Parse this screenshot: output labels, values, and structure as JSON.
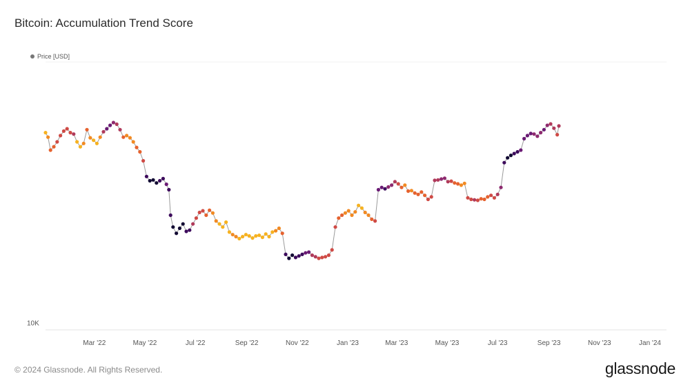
{
  "header": {
    "title": "Bitcoin: Accumulation Trend Score"
  },
  "legend": {
    "label": "Price [USD]"
  },
  "footer": {
    "copyright": "© 2024 Glassnode. All Rights Reserved.",
    "brand": "glassnode"
  },
  "colors": {
    "line": "#9a9a9a",
    "axis": "#e3e3e3",
    "palette": [
      "#120a33",
      "#3d0b5c",
      "#6a1a74",
      "#8e2a6f",
      "#b03a5b",
      "#cf4a45",
      "#e6622e",
      "#f28a22",
      "#f7b21f",
      "#f5d23a"
    ]
  },
  "chart_data": {
    "type": "scatter",
    "title": "Bitcoin: Accumulation Trend Score",
    "series_name": "Price [USD]",
    "y_scale": "log",
    "ylim": [
      9500,
      75000
    ],
    "y_tick_labels": [
      "10K"
    ],
    "x_range": [
      0,
      750
    ],
    "x_tick_labels": [
      "Mar '22",
      "May '22",
      "Jul '22",
      "Sep '22",
      "Nov '22",
      "Jan '23",
      "Mar '23",
      "May '23",
      "Jul '23",
      "Sep '23",
      "Nov '23",
      "Jan '24"
    ],
    "x_tick_days": [
      59,
      120,
      181,
      243,
      304,
      365,
      424,
      485,
      546,
      608,
      669,
      730
    ],
    "points": [
      [
        0,
        43500,
        0.15
      ],
      [
        3,
        42000,
        0.2
      ],
      [
        6,
        38000,
        0.3
      ],
      [
        10,
        39000,
        0.35
      ],
      [
        14,
        40500,
        0.45
      ],
      [
        18,
        42500,
        0.5
      ],
      [
        22,
        44000,
        0.4
      ],
      [
        26,
        44800,
        0.5
      ],
      [
        30,
        43500,
        0.45
      ],
      [
        34,
        43000,
        0.6
      ],
      [
        38,
        40500,
        0.15
      ],
      [
        42,
        39000,
        0.1
      ],
      [
        46,
        40000,
        0.2
      ],
      [
        50,
        44500,
        0.3
      ],
      [
        54,
        41800,
        0.2
      ],
      [
        58,
        41000,
        0.1
      ],
      [
        62,
        40000,
        0.15
      ],
      [
        66,
        42000,
        0.25
      ],
      [
        70,
        43800,
        0.6
      ],
      [
        74,
        44800,
        0.75
      ],
      [
        78,
        46000,
        0.8
      ],
      [
        82,
        47000,
        0.7
      ],
      [
        86,
        46400,
        0.6
      ],
      [
        90,
        44500,
        0.55
      ],
      [
        94,
        42000,
        0.3
      ],
      [
        98,
        42500,
        0.2
      ],
      [
        102,
        41800,
        0.2
      ],
      [
        106,
        40500,
        0.25
      ],
      [
        110,
        38800,
        0.3
      ],
      [
        114,
        37500,
        0.35
      ],
      [
        118,
        35000,
        0.5
      ],
      [
        122,
        31000,
        0.85
      ],
      [
        126,
        30000,
        0.95
      ],
      [
        130,
        30200,
        1.0
      ],
      [
        134,
        29500,
        0.95
      ],
      [
        138,
        30000,
        0.9
      ],
      [
        142,
        30500,
        0.85
      ],
      [
        146,
        29200,
        0.8
      ],
      [
        149,
        28000,
        0.9
      ],
      [
        151,
        23000,
        0.9
      ],
      [
        154,
        21000,
        0.95
      ],
      [
        158,
        20000,
        1.0
      ],
      [
        162,
        20800,
        0.95
      ],
      [
        166,
        21500,
        1.0
      ],
      [
        170,
        20300,
        0.9
      ],
      [
        174,
        20500,
        0.85
      ],
      [
        178,
        21500,
        0.55
      ],
      [
        182,
        22500,
        0.5
      ],
      [
        186,
        23500,
        0.45
      ],
      [
        190,
        23800,
        0.4
      ],
      [
        194,
        23000,
        0.35
      ],
      [
        198,
        23900,
        0.3
      ],
      [
        202,
        23400,
        0.25
      ],
      [
        206,
        22000,
        0.2
      ],
      [
        210,
        21500,
        0.15
      ],
      [
        214,
        21000,
        0.1
      ],
      [
        218,
        21800,
        0.1
      ],
      [
        222,
        20200,
        0.15
      ],
      [
        226,
        19800,
        0.2
      ],
      [
        230,
        19500,
        0.2
      ],
      [
        234,
        19200,
        0.15
      ],
      [
        238,
        19500,
        0.1
      ],
      [
        242,
        19800,
        0.15
      ],
      [
        246,
        19600,
        0.1
      ],
      [
        250,
        19300,
        0.15
      ],
      [
        254,
        19600,
        0.1
      ],
      [
        258,
        19700,
        0.1
      ],
      [
        262,
        19400,
        0.15
      ],
      [
        266,
        19900,
        0.1
      ],
      [
        270,
        19500,
        0.1
      ],
      [
        274,
        20200,
        0.15
      ],
      [
        278,
        20400,
        0.2
      ],
      [
        282,
        20800,
        0.25
      ],
      [
        286,
        20000,
        0.35
      ],
      [
        290,
        17000,
        0.85
      ],
      [
        294,
        16500,
        1.0
      ],
      [
        298,
        16900,
        0.95
      ],
      [
        302,
        16600,
        0.9
      ],
      [
        306,
        16800,
        0.85
      ],
      [
        310,
        17000,
        0.9
      ],
      [
        314,
        17200,
        0.8
      ],
      [
        318,
        17300,
        0.75
      ],
      [
        322,
        16900,
        0.6
      ],
      [
        326,
        16700,
        0.55
      ],
      [
        330,
        16500,
        0.5
      ],
      [
        334,
        16600,
        0.45
      ],
      [
        338,
        16700,
        0.4
      ],
      [
        342,
        16900,
        0.4
      ],
      [
        346,
        17600,
        0.45
      ],
      [
        350,
        21000,
        0.4
      ],
      [
        354,
        22500,
        0.35
      ],
      [
        358,
        23000,
        0.3
      ],
      [
        362,
        23400,
        0.25
      ],
      [
        366,
        23800,
        0.2
      ],
      [
        370,
        23000,
        0.25
      ],
      [
        374,
        23600,
        0.2
      ],
      [
        378,
        24800,
        0.15
      ],
      [
        382,
        24300,
        0.1
      ],
      [
        386,
        23500,
        0.2
      ],
      [
        390,
        23000,
        0.25
      ],
      [
        394,
        22300,
        0.3
      ],
      [
        398,
        22000,
        0.4
      ],
      [
        402,
        28000,
        0.75
      ],
      [
        406,
        28500,
        0.8
      ],
      [
        410,
        28200,
        0.85
      ],
      [
        414,
        28600,
        0.7
      ],
      [
        418,
        29000,
        0.65
      ],
      [
        422,
        29800,
        0.55
      ],
      [
        426,
        29300,
        0.5
      ],
      [
        430,
        28500,
        0.3
      ],
      [
        434,
        29000,
        0.25
      ],
      [
        438,
        27700,
        0.3
      ],
      [
        442,
        27800,
        0.25
      ],
      [
        446,
        27300,
        0.3
      ],
      [
        450,
        27000,
        0.35
      ],
      [
        454,
        27500,
        0.3
      ],
      [
        458,
        26800,
        0.35
      ],
      [
        462,
        26000,
        0.45
      ],
      [
        466,
        26500,
        0.5
      ],
      [
        470,
        30100,
        0.55
      ],
      [
        474,
        30200,
        0.6
      ],
      [
        478,
        30400,
        0.7
      ],
      [
        482,
        30600,
        0.65
      ],
      [
        486,
        29800,
        0.55
      ],
      [
        490,
        29900,
        0.45
      ],
      [
        494,
        29500,
        0.35
      ],
      [
        498,
        29300,
        0.3
      ],
      [
        502,
        29000,
        0.25
      ],
      [
        506,
        29400,
        0.2
      ],
      [
        510,
        26300,
        0.4
      ],
      [
        514,
        26000,
        0.5
      ],
      [
        518,
        25900,
        0.55
      ],
      [
        522,
        25800,
        0.45
      ],
      [
        526,
        26100,
        0.35
      ],
      [
        530,
        26000,
        0.3
      ],
      [
        534,
        26500,
        0.35
      ],
      [
        538,
        26800,
        0.4
      ],
      [
        542,
        26300,
        0.45
      ],
      [
        546,
        27000,
        0.55
      ],
      [
        550,
        28500,
        0.7
      ],
      [
        554,
        34500,
        0.9
      ],
      [
        558,
        35800,
        0.95
      ],
      [
        562,
        36500,
        1.0
      ],
      [
        566,
        37000,
        0.9
      ],
      [
        570,
        37500,
        0.85
      ],
      [
        574,
        38000,
        0.8
      ],
      [
        578,
        41500,
        0.75
      ],
      [
        582,
        42500,
        0.8
      ],
      [
        586,
        43200,
        0.75
      ],
      [
        590,
        43000,
        0.7
      ],
      [
        594,
        42300,
        0.65
      ],
      [
        598,
        43500,
        0.7
      ],
      [
        602,
        44500,
        0.75
      ],
      [
        606,
        46000,
        0.65
      ],
      [
        610,
        46500,
        0.6
      ],
      [
        614,
        45000,
        0.55
      ],
      [
        618,
        42800,
        0.5
      ],
      [
        620,
        45800,
        0.6
      ]
    ]
  }
}
